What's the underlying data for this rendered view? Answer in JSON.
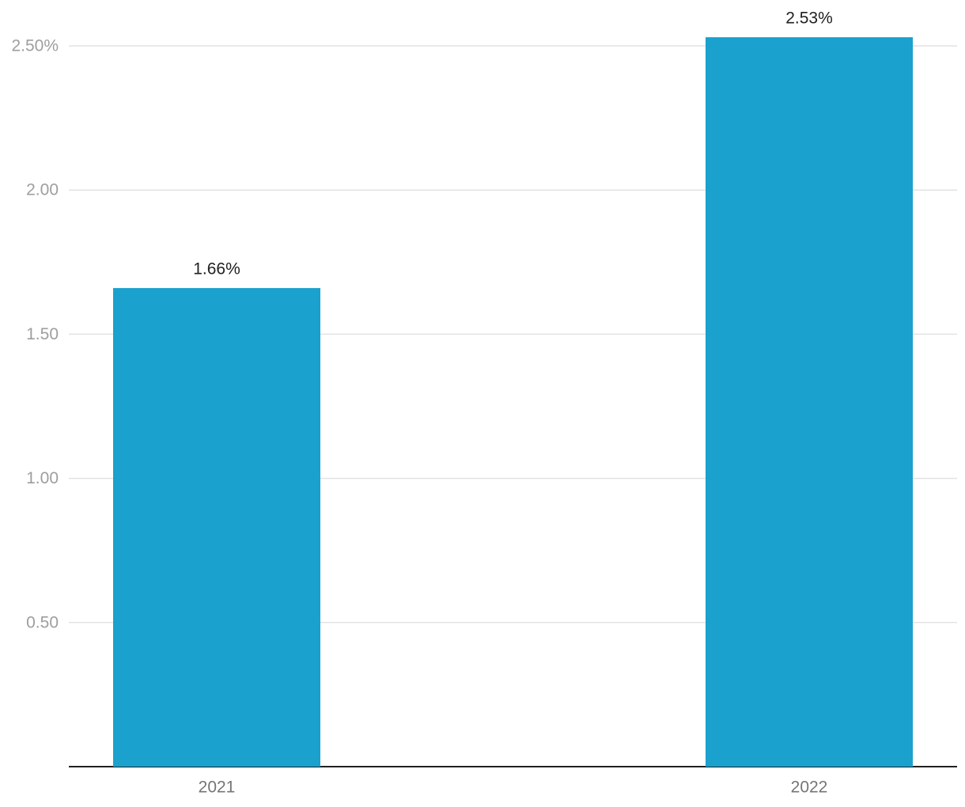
{
  "chart_data": {
    "type": "bar",
    "categories": [
      "2021",
      "2022"
    ],
    "values": [
      1.66,
      2.53
    ],
    "value_labels": [
      "1.66%",
      "2.53%"
    ],
    "color": "#1aa1cd",
    "ylim": [
      0,
      2.5
    ],
    "yticks": [
      {
        "value": 0.5,
        "label": "0.50"
      },
      {
        "value": 1,
        "label": "1.00"
      },
      {
        "value": 1.5,
        "label": "1.50"
      },
      {
        "value": 2,
        "label": "2.00"
      },
      {
        "value": 2.5,
        "label": "2.50%"
      }
    ],
    "grid": true
  }
}
